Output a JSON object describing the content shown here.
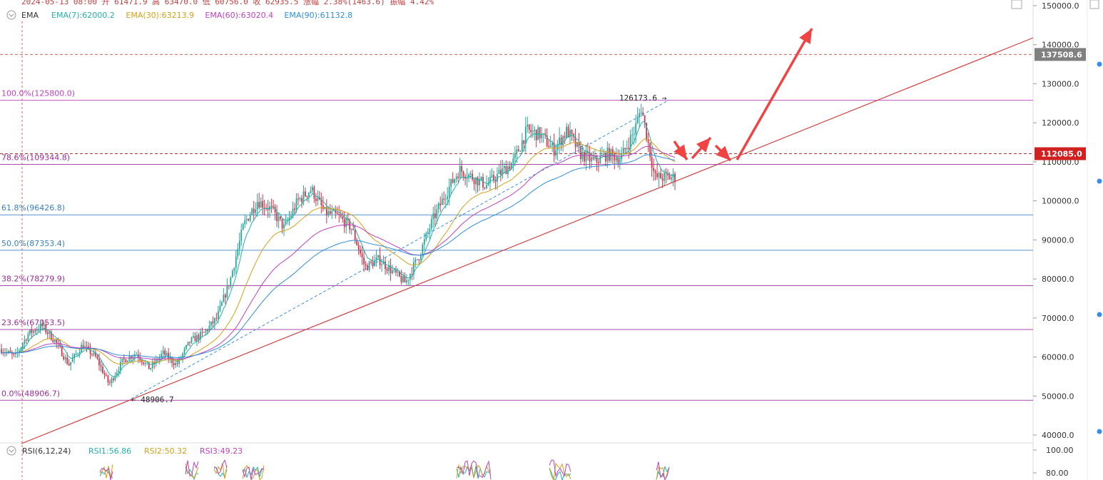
{
  "header": {
    "ohlc_line": "2024-05-13 08:00  开 61471.9  高 63470.0  低 60756.0  收 62935.5  涨幅 2.38%(1463.6)  振幅 4.42%",
    "ema_label": "EMA",
    "ema_values": [
      {
        "text": "EMA(7):62000.2",
        "color": "#20b2aa"
      },
      {
        "text": "EMA(30):63213.9",
        "color": "#d4a017"
      },
      {
        "text": "EMA(60):63020.4",
        "color": "#c040c0"
      },
      {
        "text": "EMA(90):61132.8",
        "color": "#2f8fd8"
      }
    ]
  },
  "fib_levels": [
    {
      "label": "100.0%(125800.0)",
      "price": 125800.0,
      "color": "#c040c0"
    },
    {
      "label": "78.6%(109344.8)",
      "price": 109344.8,
      "color": "#9a2c9a"
    },
    {
      "label": "61.8%(96426.8)",
      "price": 96426.8,
      "color": "#3a7fc0"
    },
    {
      "label": "50.0%(87353.4)",
      "price": 87353.4,
      "color": "#3a7fc0"
    },
    {
      "label": "38.2%(78279.9)",
      "price": 78279.9,
      "color": "#9a2c9a"
    },
    {
      "label": "23.6%(67053.5)",
      "price": 67053.5,
      "color": "#9a2c9a"
    },
    {
      "label": "0.0%(48906.7)",
      "price": 48906.7,
      "color": "#9a2c9a"
    }
  ],
  "annotations": {
    "high_marker": "126173.6 →",
    "low_marker": "← 48906.7"
  },
  "price_tags": [
    {
      "text": "137508.6",
      "price": 137508.6,
      "color": "#808080"
    },
    {
      "text": "112085.0",
      "price": 112085.0,
      "color": "#d02020"
    }
  ],
  "chart_data": {
    "type": "candlestick",
    "y_axis": {
      "ticks": [
        "150000.0",
        "140000.0",
        "130000.0",
        "120000.0",
        "110000.0",
        "100000.0",
        "90000.0",
        "80000.0",
        "70000.0",
        "60000.0",
        "50000.0",
        "40000.0"
      ],
      "range": [
        38000,
        151000
      ]
    },
    "price_path": [
      [
        0,
        62000
      ],
      [
        0.02,
        60000
      ],
      [
        0.04,
        66000
      ],
      [
        0.06,
        68000
      ],
      [
        0.08,
        64000
      ],
      [
        0.1,
        58000
      ],
      [
        0.12,
        63000
      ],
      [
        0.14,
        60000
      ],
      [
        0.16,
        53000
      ],
      [
        0.18,
        59000
      ],
      [
        0.2,
        61000
      ],
      [
        0.22,
        57000
      ],
      [
        0.24,
        61000
      ],
      [
        0.26,
        58000
      ],
      [
        0.28,
        64000
      ],
      [
        0.3,
        66000
      ],
      [
        0.32,
        70000
      ],
      [
        0.34,
        80000
      ],
      [
        0.36,
        94000
      ],
      [
        0.38,
        100000
      ],
      [
        0.4,
        98000
      ],
      [
        0.42,
        93000
      ],
      [
        0.44,
        100000
      ],
      [
        0.46,
        103000
      ],
      [
        0.48,
        97000
      ],
      [
        0.5,
        96000
      ],
      [
        0.52,
        93000
      ],
      [
        0.54,
        83000
      ],
      [
        0.56,
        85000
      ],
      [
        0.58,
        82000
      ],
      [
        0.6,
        79000
      ],
      [
        0.62,
        86000
      ],
      [
        0.64,
        95000
      ],
      [
        0.66,
        102000
      ],
      [
        0.68,
        108000
      ],
      [
        0.7,
        106000
      ],
      [
        0.72,
        104000
      ],
      [
        0.74,
        107000
      ],
      [
        0.76,
        110000
      ],
      [
        0.78,
        118000
      ],
      [
        0.8,
        117000
      ],
      [
        0.82,
        113000
      ],
      [
        0.84,
        118000
      ],
      [
        0.86,
        112000
      ],
      [
        0.88,
        110000
      ],
      [
        0.9,
        112000
      ],
      [
        0.92,
        111000
      ],
      [
        0.94,
        118000
      ],
      [
        0.95,
        124000
      ],
      [
        0.97,
        106000
      ]
    ],
    "rsi_label": "RSI(6,12,24)",
    "rsi_values": [
      {
        "text": "RSI1:56.86",
        "color": "#20b2aa"
      },
      {
        "text": "RSI2:50.32",
        "color": "#d4a017"
      },
      {
        "text": "RSI3:49.23",
        "color": "#c040c0"
      }
    ],
    "rsi_ticks": [
      "100.00",
      "80.00"
    ]
  }
}
